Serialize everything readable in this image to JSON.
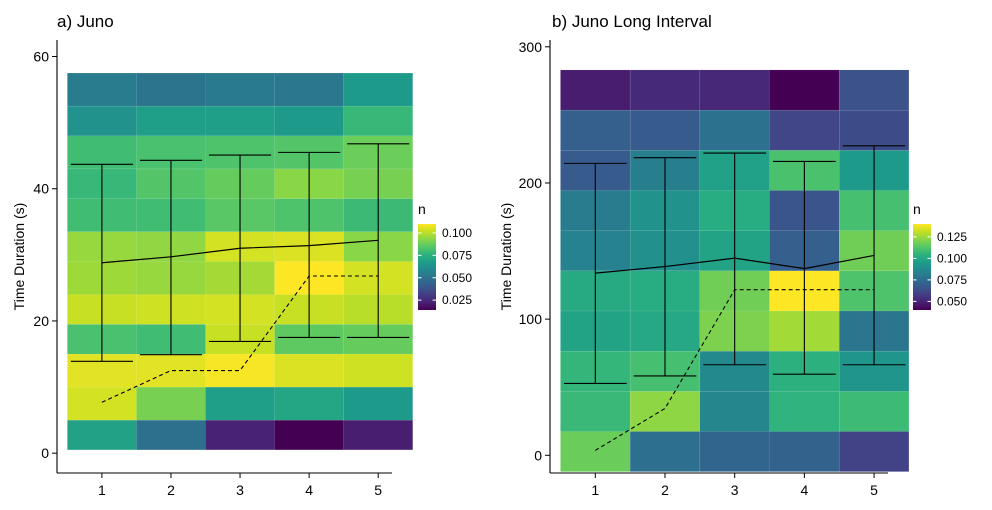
{
  "chart_data": [
    {
      "type": "heatmap",
      "title": "a) Juno",
      "xlabel": "",
      "ylabel": "Time Duration (s)",
      "x_ticks": [
        "1",
        "2",
        "3",
        "4",
        "5"
      ],
      "y_ticks": [
        "0",
        "20",
        "40",
        "60"
      ],
      "xlim": [
        0.35,
        5.2
      ],
      "ylim": [
        -3,
        62.5
      ],
      "x_columns": [
        1,
        2,
        3,
        4,
        5
      ],
      "y_bins": [
        [
          0.5,
          5.0
        ],
        [
          5.0,
          10.0
        ],
        [
          10.0,
          15.0
        ],
        [
          15.0,
          19.5
        ],
        [
          19.5,
          24.0
        ],
        [
          24.0,
          29.0
        ],
        [
          29.0,
          33.5
        ],
        [
          33.5,
          38.5
        ],
        [
          38.5,
          43.0
        ],
        [
          43.0,
          48.0
        ],
        [
          48.0,
          52.5
        ],
        [
          52.5,
          57.5
        ]
      ],
      "cells_by_column": [
        [
          0.069,
          0.104,
          0.106,
          0.082,
          0.102,
          0.096,
          0.095,
          0.08,
          0.078,
          0.08,
          0.063,
          0.054
        ],
        [
          0.049,
          0.09,
          0.106,
          0.08,
          0.103,
          0.095,
          0.094,
          0.08,
          0.084,
          0.082,
          0.068,
          0.05
        ],
        [
          0.023,
          0.068,
          0.109,
          0.102,
          0.104,
          0.097,
          0.104,
          0.085,
          0.087,
          0.083,
          0.068,
          0.053
        ],
        [
          0.014,
          0.071,
          0.105,
          0.086,
          0.102,
          0.11,
          0.105,
          0.083,
          0.093,
          0.084,
          0.066,
          0.052
        ],
        [
          0.022,
          0.066,
          0.103,
          0.087,
          0.1,
          0.104,
          0.093,
          0.079,
          0.09,
          0.088,
          0.078,
          0.066
        ]
      ],
      "mean_line": [
        [
          1,
          28.8
        ],
        [
          2,
          29.7
        ],
        [
          3,
          31.0
        ],
        [
          4,
          31.4
        ],
        [
          5,
          32.2
        ]
      ],
      "error_bars": [
        [
          1,
          13.9,
          43.7
        ],
        [
          2,
          14.9,
          44.3
        ],
        [
          3,
          16.9,
          45.1
        ],
        [
          4,
          17.5,
          45.5
        ],
        [
          5,
          17.5,
          46.8
        ]
      ],
      "dashed_line": [
        [
          1,
          7.7
        ],
        [
          2,
          12.5
        ],
        [
          3,
          12.5
        ],
        [
          4,
          26.8
        ],
        [
          5,
          26.8
        ]
      ],
      "legend": {
        "title": "n",
        "ticks": [
          0.025,
          0.05,
          0.075,
          0.1
        ],
        "tick_labels": [
          "0.025",
          "0.050",
          "0.075",
          "0.100"
        ],
        "range": [
          0.014,
          0.11
        ],
        "placement": "right"
      }
    },
    {
      "type": "heatmap",
      "title": "b) Juno Long Interval",
      "xlabel": "",
      "ylabel": "Time Duration (s)",
      "x_ticks": [
        "1",
        "2",
        "3",
        "4",
        "5"
      ],
      "y_ticks": [
        "0",
        "100",
        "200",
        "300"
      ],
      "xlim": [
        0.35,
        5.2
      ],
      "ylim": [
        -13,
        305
      ],
      "x_columns": [
        1,
        2,
        3,
        4,
        5
      ],
      "y_bins": [
        [
          -12,
          17.5
        ],
        [
          17.5,
          47.0
        ],
        [
          47.0,
          76.5
        ],
        [
          76.5,
          106.0
        ],
        [
          106.0,
          135.5
        ],
        [
          135.5,
          165.0
        ],
        [
          165.0,
          194.5
        ],
        [
          194.5,
          224.0
        ],
        [
          224.0,
          253.5
        ],
        [
          253.5,
          283.0
        ]
      ],
      "cells_by_column": [
        [
          0.117,
          0.107,
          0.106,
          0.098,
          0.101,
          0.084,
          0.081,
          0.068,
          0.07,
          0.048
        ],
        [
          0.076,
          0.123,
          0.11,
          0.1,
          0.102,
          0.09,
          0.091,
          0.083,
          0.068,
          0.052
        ],
        [
          0.072,
          0.086,
          0.087,
          0.12,
          0.118,
          0.098,
          0.102,
          0.097,
          0.077,
          0.051
        ],
        [
          0.071,
          0.105,
          0.104,
          0.126,
          0.14,
          0.07,
          0.066,
          0.111,
          0.061,
          0.04
        ],
        [
          0.06,
          0.108,
          0.092,
          0.079,
          0.112,
          0.118,
          0.11,
          0.094,
          0.063,
          0.065
        ]
      ],
      "mean_line": [
        [
          1,
          133.8
        ],
        [
          2,
          138.6
        ],
        [
          3,
          144.8
        ],
        [
          4,
          137.1
        ],
        [
          5,
          146.8
        ]
      ],
      "error_bars": [
        [
          1,
          52.8,
          214.4
        ],
        [
          2,
          58.3,
          218.6
        ],
        [
          3,
          66.5,
          222.0
        ],
        [
          4,
          59.6,
          215.8
        ],
        [
          5,
          66.5,
          227.3
        ]
      ],
      "dashed_line": [
        [
          1,
          3.6
        ],
        [
          2,
          34.4
        ],
        [
          3,
          121.6
        ],
        [
          4,
          121.6
        ],
        [
          5,
          121.6
        ]
      ],
      "legend": {
        "title": "n",
        "ticks": [
          0.05,
          0.075,
          0.1,
          0.125
        ],
        "tick_labels": [
          "0.050",
          "0.075",
          "0.100",
          "0.125"
        ],
        "range": [
          0.04,
          0.14
        ],
        "placement": "right"
      }
    }
  ]
}
